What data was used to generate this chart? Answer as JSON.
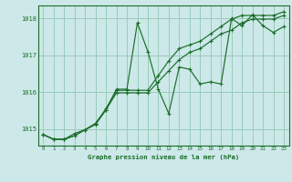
{
  "background_color": "#cce8e8",
  "grid_color": "#99ccbb",
  "line_color": "#1a6e2a",
  "title": "Graphe pression niveau de la mer (hPa)",
  "xlim": [
    -0.5,
    23.5
  ],
  "ylim": [
    1014.55,
    1018.35
  ],
  "yticks": [
    1015,
    1016,
    1017,
    1018
  ],
  "xticks": [
    0,
    1,
    2,
    3,
    4,
    5,
    6,
    7,
    8,
    9,
    10,
    11,
    12,
    13,
    14,
    15,
    16,
    17,
    18,
    19,
    20,
    21,
    22,
    23
  ],
  "series": [
    {
      "x": [
        0,
        1,
        2,
        3,
        4,
        5,
        6,
        7,
        8,
        9,
        10,
        11,
        12,
        13,
        14,
        15,
        16,
        17,
        18,
        19,
        20,
        21,
        22,
        23
      ],
      "y": [
        1014.85,
        1014.72,
        1014.72,
        1014.82,
        1014.98,
        1015.12,
        1015.52,
        1016.08,
        1016.08,
        1017.88,
        1017.1,
        1016.08,
        1015.42,
        1016.68,
        1016.62,
        1016.22,
        1016.28,
        1016.22,
        1018.0,
        1017.8,
        1018.1,
        1017.8,
        1017.62,
        1017.78
      ]
    },
    {
      "x": [
        0,
        1,
        2,
        3,
        4,
        5,
        6,
        7,
        8,
        9,
        10,
        11,
        12,
        13,
        14,
        15,
        16,
        17,
        18,
        19,
        20,
        21,
        22,
        23
      ],
      "y": [
        1014.85,
        1014.72,
        1014.72,
        1014.82,
        1014.98,
        1015.15,
        1015.55,
        1016.05,
        1016.05,
        1016.05,
        1016.05,
        1016.45,
        1016.85,
        1017.18,
        1017.28,
        1017.38,
        1017.58,
        1017.78,
        1017.98,
        1018.08,
        1018.08,
        1018.08,
        1018.08,
        1018.18
      ]
    },
    {
      "x": [
        0,
        1,
        2,
        3,
        4,
        5,
        6,
        7,
        8,
        9,
        10,
        11,
        12,
        13,
        14,
        15,
        16,
        17,
        18,
        19,
        20,
        21,
        22,
        23
      ],
      "y": [
        1014.85,
        1014.72,
        1014.72,
        1014.88,
        1014.98,
        1015.15,
        1015.52,
        1015.98,
        1015.98,
        1015.98,
        1015.98,
        1016.28,
        1016.58,
        1016.88,
        1017.08,
        1017.18,
        1017.38,
        1017.58,
        1017.68,
        1017.88,
        1017.98,
        1017.98,
        1017.98,
        1018.08
      ]
    }
  ]
}
